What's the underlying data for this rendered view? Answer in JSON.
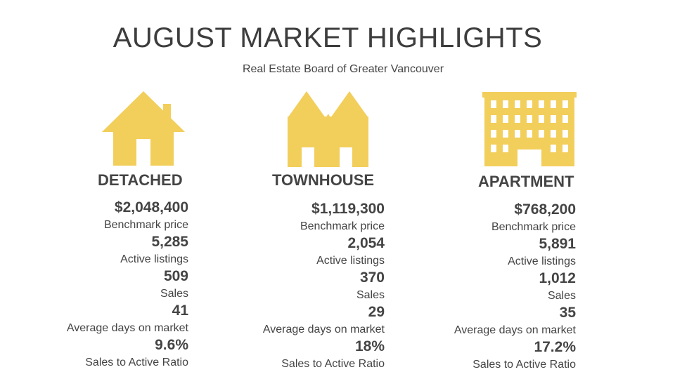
{
  "header": {
    "title": "AUGUST MARKET HIGHLIGHTS",
    "subtitle": "Real Estate Board of Greater Vancouver"
  },
  "accent_color": "#F2CE5B",
  "columns": [
    {
      "icon": "house-icon",
      "category": "DETACHED",
      "stats": [
        {
          "value": "$2,048,400",
          "label": "Benchmark price"
        },
        {
          "value": "5,285",
          "label": "Active listings"
        },
        {
          "value": "509",
          "label": "Sales"
        },
        {
          "value": "41",
          "label": "Average days on market"
        },
        {
          "value": "9.6%",
          "label": "Sales to Active Ratio"
        }
      ]
    },
    {
      "icon": "townhouse-icon",
      "category": "TOWNHOUSE",
      "stats": [
        {
          "value": "$1,119,300",
          "label": "Benchmark price"
        },
        {
          "value": "2,054",
          "label": "Active listings"
        },
        {
          "value": "370",
          "label": "Sales"
        },
        {
          "value": "29",
          "label": "Average days on market"
        },
        {
          "value": "18%",
          "label": "Sales to Active Ratio"
        }
      ]
    },
    {
      "icon": "apartment-building-icon",
      "category": "APARTMENT",
      "stats": [
        {
          "value": "$768,200",
          "label": "Benchmark price"
        },
        {
          "value": "5,891",
          "label": "Active listings"
        },
        {
          "value": "1,012",
          "label": "Sales"
        },
        {
          "value": "35",
          "label": "Average days on market"
        },
        {
          "value": "17.2%",
          "label": "Sales to Active Ratio"
        }
      ]
    }
  ]
}
